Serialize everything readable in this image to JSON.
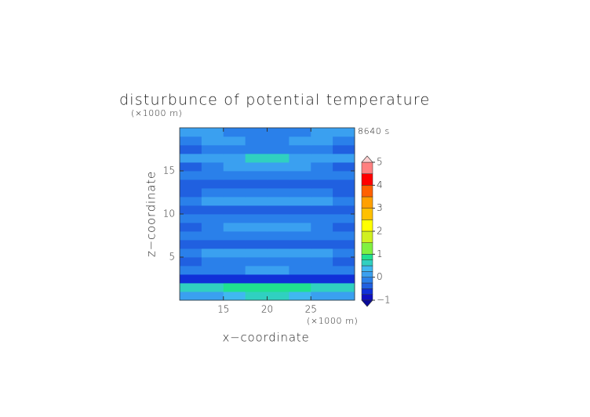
{
  "chart_data": {
    "type": "contour",
    "title": "disturbunce of potential temperature",
    "time_label": "8640 s",
    "x_label": "x−coordinate",
    "y_label": "z−coordinate",
    "x_unit": "(×1000 m)",
    "y_unit": "(×1000 m)",
    "xlim": [
      10,
      30
    ],
    "ylim": [
      0,
      20
    ],
    "xticks": [
      15,
      20,
      25
    ],
    "yticks": [
      5,
      10,
      15
    ],
    "x_edges": [
      10,
      12.5,
      15,
      17.5,
      20,
      22.5,
      25,
      27.5,
      30
    ],
    "y_edges": [
      0,
      1,
      2,
      3,
      4,
      5,
      6,
      7,
      8,
      9,
      10,
      11,
      12,
      13,
      14,
      15,
      16,
      17,
      18,
      19,
      20
    ],
    "values": [
      [
        0.1,
        0.2,
        0.3,
        0.6,
        0.6,
        0.3,
        0.2,
        0.1
      ],
      [
        0.6,
        0.7,
        0.8,
        0.8,
        0.8,
        0.8,
        0.7,
        0.6
      ],
      [
        -0.6,
        -0.6,
        -0.6,
        -0.7,
        -0.7,
        -0.6,
        -0.6,
        -0.6
      ],
      [
        -0.1,
        -0.1,
        -0.1,
        0.1,
        0.1,
        -0.1,
        -0.1,
        -0.1
      ],
      [
        -0.3,
        -0.2,
        -0.1,
        -0.1,
        -0.1,
        -0.1,
        -0.2,
        -0.3
      ],
      [
        -0.1,
        0.1,
        0.1,
        0.1,
        0.1,
        0.1,
        0.1,
        -0.1
      ],
      [
        -0.3,
        -0.3,
        -0.4,
        -0.4,
        -0.4,
        -0.4,
        -0.3,
        -0.3
      ],
      [
        -0.1,
        -0.1,
        -0.1,
        -0.1,
        -0.1,
        -0.1,
        -0.1,
        -0.1
      ],
      [
        -0.3,
        -0.1,
        0.1,
        0.1,
        0.1,
        0.1,
        -0.1,
        -0.3
      ],
      [
        -0.1,
        -0.1,
        -0.1,
        -0.1,
        -0.1,
        -0.1,
        -0.1,
        -0.1
      ],
      [
        -0.3,
        -0.3,
        -0.3,
        -0.3,
        -0.3,
        -0.3,
        -0.3,
        -0.3
      ],
      [
        -0.1,
        0.1,
        0.1,
        0.1,
        0.1,
        0.1,
        0.1,
        -0.1
      ],
      [
        -0.3,
        -0.1,
        -0.1,
        -0.1,
        -0.1,
        -0.1,
        -0.1,
        -0.3
      ],
      [
        -0.3,
        -0.3,
        -0.3,
        -0.3,
        -0.3,
        -0.3,
        -0.3,
        -0.3
      ],
      [
        -0.1,
        -0.1,
        -0.1,
        -0.1,
        -0.1,
        -0.1,
        -0.1,
        -0.1
      ],
      [
        -0.3,
        -0.1,
        0.1,
        0.1,
        0.1,
        0.1,
        -0.1,
        -0.3
      ],
      [
        0.1,
        0.1,
        0.1,
        0.6,
        0.6,
        0.1,
        0.1,
        0.1
      ],
      [
        -0.3,
        -0.1,
        -0.1,
        -0.1,
        -0.1,
        -0.1,
        -0.1,
        -0.3
      ],
      [
        -0.1,
        0.1,
        0.1,
        -0.1,
        -0.1,
        0.1,
        0.1,
        -0.1
      ],
      [
        0.1,
        0.1,
        -0.1,
        -0.1,
        -0.1,
        -0.1,
        0.1,
        0.1
      ]
    ],
    "colorbar": {
      "levels": [
        -1,
        -0.75,
        -0.5,
        -0.25,
        0,
        0.25,
        0.5,
        0.75,
        1,
        1.5,
        2,
        2.5,
        3,
        3.5,
        4,
        4.5,
        5
      ],
      "colors": [
        "#1010c0",
        "#1030d8",
        "#2060e0",
        "#2a80ea",
        "#3aa0f0",
        "#40b8f0",
        "#30d0c0",
        "#20e090",
        "#80f040",
        "#d0f020",
        "#ffff00",
        "#ffc000",
        "#ffa000",
        "#ff6000",
        "#ff0000",
        "#ff8080"
      ],
      "under_color": "#0a0a9a",
      "over_color": "#ffd0d0",
      "ticks": [
        {
          "value": -1,
          "label": "−1"
        },
        0,
        1,
        2,
        3,
        4,
        5
      ]
    }
  }
}
